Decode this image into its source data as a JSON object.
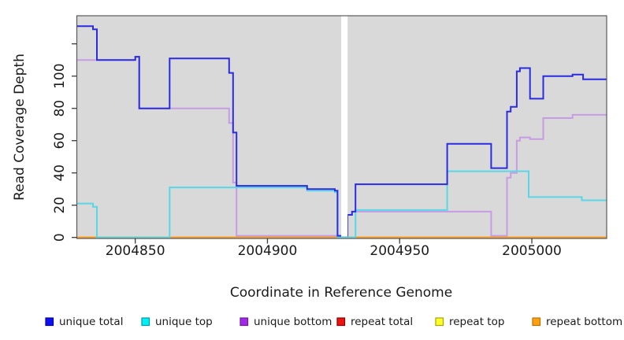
{
  "figure": {
    "background": "#ffffff",
    "plot_background": "#d9d9d9",
    "box_color": "#5a5a5a",
    "tick_color": "#3c3c3c"
  },
  "chart_data": {
    "type": "line",
    "step": true,
    "title": "",
    "xlabel": "Coordinate in Reference Genome",
    "ylabel": "Read Coverage Depth",
    "x_range": [
      2004827.9,
      2005028.3
    ],
    "ylim": [
      0,
      137
    ],
    "grid": false,
    "legend_position": "bottom",
    "x_ticks": [
      {
        "v": 2004850,
        "label": "2004850"
      },
      {
        "v": 2004900,
        "label": "2004900"
      },
      {
        "v": 2004950,
        "label": "2004950"
      },
      {
        "v": 2005000,
        "label": "2005000"
      }
    ],
    "y_ticks": [
      {
        "v": 0,
        "label": "0"
      },
      {
        "v": 20,
        "label": "20"
      },
      {
        "v": 40,
        "label": "40"
      },
      {
        "v": 60,
        "label": "60"
      },
      {
        "v": 80,
        "label": "80"
      },
      {
        "v": 100,
        "label": "100"
      },
      {
        "v": 120,
        "label": ""
      }
    ],
    "gap": {
      "x0": 2004927.9,
      "x1": 2004930.3,
      "note": "white vertical band, no data"
    },
    "series": [
      {
        "name": "unique total",
        "color": "#2b2be2",
        "legend_fill": "#1010ee",
        "legend_border": "#0000b0",
        "points": [
          [
            2004827.9,
            131
          ],
          [
            2004834,
            129
          ],
          [
            2004835.5,
            110
          ],
          [
            2004850,
            112
          ],
          [
            2004851.5,
            80
          ],
          [
            2004863,
            111
          ],
          [
            2004885.5,
            102
          ],
          [
            2004887,
            65
          ],
          [
            2004888.3,
            32
          ],
          [
            2004915,
            30
          ],
          [
            2004925.5,
            29
          ],
          [
            2004926.5,
            1
          ],
          [
            2004930.3,
            14
          ],
          [
            2004932,
            16
          ],
          [
            2004933.3,
            33
          ],
          [
            2004968,
            58
          ],
          [
            2004984.6,
            43
          ],
          [
            2004990.6,
            78
          ],
          [
            2004992,
            81
          ],
          [
            2004994.3,
            103
          ],
          [
            2004995.5,
            105
          ],
          [
            2004999.3,
            86
          ],
          [
            2005004.3,
            100
          ],
          [
            2005015.4,
            101
          ],
          [
            2005019.4,
            98
          ],
          [
            2005028.3,
            98
          ]
        ]
      },
      {
        "name": "unique top",
        "color": "#58d8e6",
        "legend_fill": "#00f0f6",
        "legend_border": "#009aa8",
        "points": [
          [
            2004827.9,
            21
          ],
          [
            2004834,
            19
          ],
          [
            2004835.5,
            0
          ],
          [
            2004863,
            31
          ],
          [
            2004915,
            29
          ],
          [
            2004925.5,
            28
          ],
          [
            2004926.5,
            0
          ],
          [
            2004933.3,
            17
          ],
          [
            2004968,
            41
          ],
          [
            2004998.8,
            25
          ],
          [
            2005018.9,
            23
          ],
          [
            2005028.3,
            23
          ]
        ]
      },
      {
        "name": "unique bottom",
        "color": "#c79ce4",
        "legend_fill": "#a428e8",
        "legend_border": "#6d1b9e",
        "points": [
          [
            2004827.9,
            110
          ],
          [
            2004850,
            112
          ],
          [
            2004851.5,
            80
          ],
          [
            2004885.5,
            71
          ],
          [
            2004887,
            34
          ],
          [
            2004888.3,
            1
          ],
          [
            2004930.3,
            14
          ],
          [
            2004932,
            16
          ],
          [
            2004984.6,
            1
          ],
          [
            2004990.6,
            37
          ],
          [
            2004992,
            40
          ],
          [
            2004994.3,
            60
          ],
          [
            2004995.5,
            62
          ],
          [
            2004999.3,
            61
          ],
          [
            2005004.3,
            74
          ],
          [
            2005015.4,
            76
          ],
          [
            2005028.3,
            76
          ]
        ]
      },
      {
        "name": "repeat total",
        "color": "#e01010",
        "legend_fill": "#ee1111",
        "legend_border": "#8e0000",
        "points": [
          [
            2004827.9,
            0
          ],
          [
            2005028.3,
            0
          ]
        ]
      },
      {
        "name": "repeat top",
        "color": "#f0e400",
        "legend_fill": "#ffff2a",
        "legend_border": "#a8a400",
        "points": [
          [
            2004827.9,
            0
          ],
          [
            2005028.3,
            0
          ]
        ]
      },
      {
        "name": "repeat bottom",
        "color": "#ff9d1e",
        "legend_fill": "#ffa013",
        "legend_border": "#b87400",
        "points": [
          [
            2004827.9,
            0
          ],
          [
            2005028.3,
            0
          ]
        ]
      }
    ]
  }
}
